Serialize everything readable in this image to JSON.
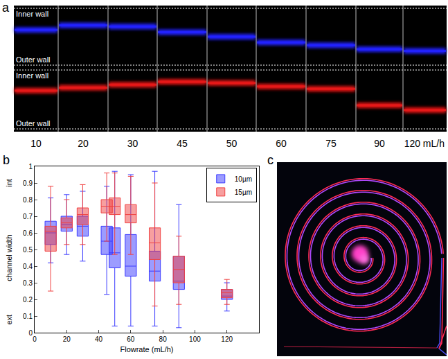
{
  "image_a": {
    "panel_label": "a",
    "inner_wall": "Inner wall",
    "outer_wall": "Outer wall",
    "columns": [
      "10",
      "20",
      "30",
      "45",
      "50",
      "60",
      "75",
      "90",
      "120 mL/h"
    ],
    "blue_position": [
      0.38,
      0.3,
      0.32,
      0.42,
      0.5,
      0.6,
      0.65,
      0.72,
      0.75
    ],
    "red_position": [
      0.35,
      0.3,
      0.25,
      0.2,
      0.22,
      0.28,
      0.32,
      0.6,
      0.68
    ],
    "blue_color": "#2222ff",
    "red_color": "#e81818"
  },
  "chart_data": {
    "type": "box",
    "panel_label": "b",
    "x_label": "Flowrate (mL/h)",
    "y_label": "channel width",
    "y_label_top": "int",
    "y_label_bottom": "ext",
    "xlim": [
      0,
      140
    ],
    "xticks": [
      0,
      20,
      40,
      60,
      80,
      100,
      120
    ],
    "ylim": [
      0,
      1
    ],
    "yticks": [
      0,
      0.1,
      0.2,
      0.3,
      0.4,
      0.5,
      0.6,
      0.7,
      0.8,
      0.9,
      1
    ],
    "grid": false,
    "legend": "northeast",
    "series": [
      {
        "name": "10µm",
        "color": "#3a3aff",
        "x": [
          10,
          20,
          30,
          45,
          50,
          60,
          75,
          90,
          120
        ],
        "lower_whisker": [
          0.42,
          0.47,
          0.43,
          0.23,
          0.04,
          0.04,
          0.04,
          0.03,
          0.13
        ],
        "q1": [
          0.53,
          0.61,
          0.58,
          0.47,
          0.39,
          0.34,
          0.31,
          0.26,
          0.2
        ],
        "median": [
          0.6,
          0.65,
          0.64,
          0.55,
          0.48,
          0.4,
          0.37,
          0.31,
          0.22
        ],
        "q3": [
          0.67,
          0.7,
          0.7,
          0.64,
          0.63,
          0.59,
          0.49,
          0.46,
          0.26
        ],
        "upper_whisker": [
          0.81,
          0.83,
          0.85,
          0.88,
          0.97,
          0.95,
          0.97,
          0.77,
          0.3
        ]
      },
      {
        "name": "15µm",
        "color": "#f04040",
        "x": [
          10,
          20,
          30,
          45,
          50,
          60,
          75,
          90,
          120
        ],
        "lower_whisker": [
          0.25,
          0.53,
          0.53,
          0.55,
          0.47,
          0.47,
          0.16,
          0.17,
          0.17
        ],
        "q1": [
          0.49,
          0.63,
          0.65,
          0.72,
          0.71,
          0.66,
          0.44,
          0.3,
          0.21
        ],
        "median": [
          0.61,
          0.66,
          0.71,
          0.76,
          0.76,
          0.71,
          0.54,
          0.38,
          0.24
        ],
        "q3": [
          0.64,
          0.69,
          0.75,
          0.8,
          0.81,
          0.77,
          0.63,
          0.46,
          0.26
        ],
        "upper_whisker": [
          0.88,
          0.8,
          0.89,
          0.96,
          0.96,
          0.94,
          0.9,
          0.58,
          0.32
        ]
      }
    ]
  },
  "image_c": {
    "panel_label": "c"
  }
}
